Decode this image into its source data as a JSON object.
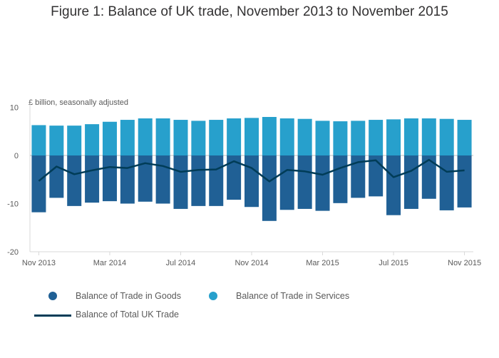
{
  "title": "Figure 1: Balance of UK trade, November 2013 to November 2015",
  "colors": {
    "goods": "#206095",
    "services": "#27a0cc",
    "total": "#003c57",
    "axis": "#d9d9d9",
    "zero": "#bdbdbd"
  },
  "legend": {
    "goods": "Balance of Trade in Goods",
    "services": "Balance of Trade in Services",
    "total": "Balance of Total UK Trade"
  },
  "chart_data": {
    "type": "bar",
    "ylabel": "£ billion, seasonally adjusted",
    "ylim": [
      -20,
      10
    ],
    "yticks": [
      10,
      0,
      -10,
      -20
    ],
    "grid": false,
    "legend_position": "bottom",
    "categories": [
      "Nov 2013",
      "Dec 2013",
      "Jan 2014",
      "Feb 2014",
      "Mar 2014",
      "Apr 2014",
      "May 2014",
      "Jun 2014",
      "Jul 2014",
      "Aug 2014",
      "Sep 2014",
      "Oct 2014",
      "Nov 2014",
      "Dec 2014",
      "Jan 2015",
      "Feb 2015",
      "Mar 2015",
      "Apr 2015",
      "May 2015",
      "Jun 2015",
      "Jul 2015",
      "Aug 2015",
      "Sep 2015",
      "Oct 2015",
      "Nov 2015"
    ],
    "xtick_labels": [
      {
        "index": 0,
        "label": "Nov 2013"
      },
      {
        "index": 4,
        "label": "Mar 2014"
      },
      {
        "index": 8,
        "label": "Jul 2014"
      },
      {
        "index": 12,
        "label": "Nov 2014"
      },
      {
        "index": 16,
        "label": "Mar 2015"
      },
      {
        "index": 20,
        "label": "Jul 2015"
      },
      {
        "index": 24,
        "label": "Nov 2015"
      }
    ],
    "series": [
      {
        "name": "Balance of Trade in Goods",
        "kind": "bar",
        "values": [
          -11.8,
          -8.8,
          -10.5,
          -9.8,
          -9.5,
          -10.0,
          -9.6,
          -10.0,
          -11.1,
          -10.5,
          -10.5,
          -9.2,
          -10.7,
          -13.6,
          -11.3,
          -11.1,
          -11.5,
          -9.9,
          -8.8,
          -8.5,
          -12.4,
          -11.1,
          -9.0,
          -11.4,
          -10.8
        ]
      },
      {
        "name": "Balance of Trade in Services",
        "kind": "bar",
        "values": [
          6.3,
          6.2,
          6.2,
          6.5,
          7.0,
          7.4,
          7.7,
          7.7,
          7.4,
          7.2,
          7.4,
          7.7,
          7.8,
          8.0,
          7.7,
          7.6,
          7.2,
          7.1,
          7.2,
          7.4,
          7.5,
          7.7,
          7.7,
          7.6,
          7.4
        ]
      },
      {
        "name": "Balance of Total UK Trade",
        "kind": "line",
        "values": [
          -5.3,
          -2.3,
          -3.9,
          -3.1,
          -2.4,
          -2.6,
          -1.6,
          -2.2,
          -3.4,
          -3.0,
          -2.9,
          -1.2,
          -2.6,
          -5.4,
          -3.0,
          -3.3,
          -4.0,
          -2.6,
          -1.4,
          -1.0,
          -4.5,
          -3.2,
          -0.9,
          -3.4,
          -3.1
        ]
      }
    ]
  }
}
